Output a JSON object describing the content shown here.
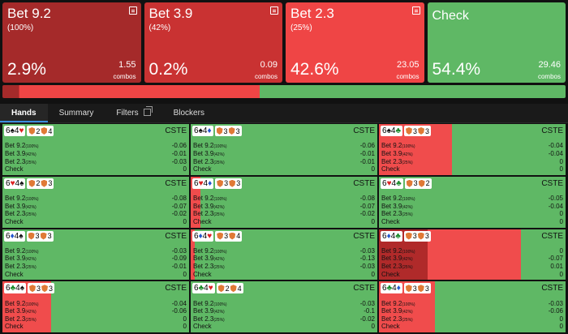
{
  "actions": [
    {
      "name": "Bet 9.2",
      "pct": "(100%)",
      "freq": "2.9%",
      "combos": "1.55",
      "combos_label": "combos",
      "color": "#a52a2a"
    },
    {
      "name": "Bet 3.9",
      "pct": "(42%)",
      "freq": "0.2%",
      "combos": "0.09",
      "combos_label": "combos",
      "color": "#c93232"
    },
    {
      "name": "Bet 2.3",
      "pct": "(25%)",
      "freq": "42.6%",
      "combos": "23.05",
      "combos_label": "combos",
      "color": "#ef4545"
    },
    {
      "name": "Check",
      "pct": "",
      "freq": "54.4%",
      "combos": "29.46",
      "combos_label": "combos",
      "color": "#5fb865"
    }
  ],
  "strategy_bar": [
    {
      "fraction": 0.029,
      "color": "#a52a2a"
    },
    {
      "fraction": 0.002,
      "color": "#c93232"
    },
    {
      "fraction": 0.426,
      "color": "#ef4545"
    },
    {
      "fraction": 0.544,
      "color": "#5fb865"
    }
  ],
  "tabs": [
    {
      "label": "Hands",
      "active": true
    },
    {
      "label": "Summary",
      "active": false
    },
    {
      "label": "Filters",
      "active": false,
      "icon": "copy-icon"
    },
    {
      "label": "Blockers",
      "active": false
    }
  ],
  "row_labels": [
    "Bet 9.2",
    "Bet 3.9",
    "Bet 2.3",
    "Check"
  ],
  "row_pcts": [
    "(100%)",
    "(42%)",
    "(25%)",
    ""
  ],
  "cste_label": "CSTE",
  "hands": [
    {
      "c1": "6",
      "s1": "s",
      "c2": "4",
      "s2": "h",
      "b1": "2",
      "b2": "4",
      "bars": [
        0,
        0,
        0
      ],
      "ev": [
        "-0.06",
        "-0.01",
        "-0.03",
        "0"
      ]
    },
    {
      "c1": "6",
      "s1": "s",
      "c2": "4",
      "s2": "d",
      "b1": "3",
      "b2": "3",
      "bars": [
        0,
        0,
        0
      ],
      "ev": [
        "-0.06",
        "-0.01",
        "-0.01",
        "0"
      ]
    },
    {
      "c1": "6",
      "s1": "s",
      "c2": "4",
      "s2": "c",
      "b1": "3",
      "b2": "3",
      "bars": [
        0,
        0,
        0.39
      ],
      "ev": [
        "-0.04",
        "-0.04",
        "0",
        "0"
      ]
    },
    {
      "c1": "6",
      "s1": "h",
      "c2": "4",
      "s2": "s",
      "b1": "2",
      "b2": "3",
      "bars": [
        0,
        0,
        0
      ],
      "ev": [
        "-0.08",
        "-0.07",
        "-0.02",
        "0"
      ]
    },
    {
      "c1": "6",
      "s1": "h",
      "c2": "4",
      "s2": "d",
      "b1": "3",
      "b2": "3",
      "bars": [
        0,
        0,
        0.05
      ],
      "ev": [
        "-0.08",
        "-0.07",
        "-0.02",
        "0"
      ]
    },
    {
      "c1": "6",
      "s1": "h",
      "c2": "4",
      "s2": "c",
      "b1": "3",
      "b2": "2",
      "bars": [
        0,
        0,
        0
      ],
      "ev": [
        "-0.05",
        "-0.04",
        "0",
        "0"
      ]
    },
    {
      "c1": "6",
      "s1": "d",
      "c2": "4",
      "s2": "s",
      "b1": "3",
      "b2": "3",
      "bars": [
        0,
        0,
        0
      ],
      "ev": [
        "-0.03",
        "-0.09",
        "-0.01",
        "0"
      ]
    },
    {
      "c1": "6",
      "s1": "d",
      "c2": "4",
      "s2": "h",
      "b1": "3",
      "b2": "4",
      "bars": [
        0,
        0,
        0.02
      ],
      "ev": [
        "-0.03",
        "-0.13",
        "-0.03",
        "0"
      ]
    },
    {
      "c1": "6",
      "s1": "d",
      "c2": "4",
      "s2": "c",
      "b1": "3",
      "b2": "3",
      "bars": [
        0.26,
        0,
        0.5
      ],
      "ev": [
        "0",
        "-0.07",
        "0.01",
        "0"
      ]
    },
    {
      "c1": "6",
      "s1": "c",
      "c2": "4",
      "s2": "s",
      "b1": "3",
      "b2": "3",
      "bars": [
        0,
        0,
        0.26
      ],
      "ev": [
        "-0.04",
        "-0.06",
        "0",
        "0"
      ]
    },
    {
      "c1": "6",
      "s1": "c",
      "c2": "4",
      "s2": "h",
      "b1": "2",
      "b2": "4",
      "bars": [
        0,
        0,
        0
      ],
      "ev": [
        "-0.03",
        "-0.1",
        "-0.02",
        "0"
      ]
    },
    {
      "c1": "6",
      "s1": "c",
      "c2": "4",
      "s2": "d",
      "b1": "3",
      "b2": "3",
      "bars": [
        0,
        0,
        0.3
      ],
      "ev": [
        "-0.03",
        "-0.06",
        "0",
        "0"
      ]
    }
  ],
  "suit_glyphs": {
    "s": "♠",
    "h": "♥",
    "d": "♦",
    "c": "♣"
  }
}
